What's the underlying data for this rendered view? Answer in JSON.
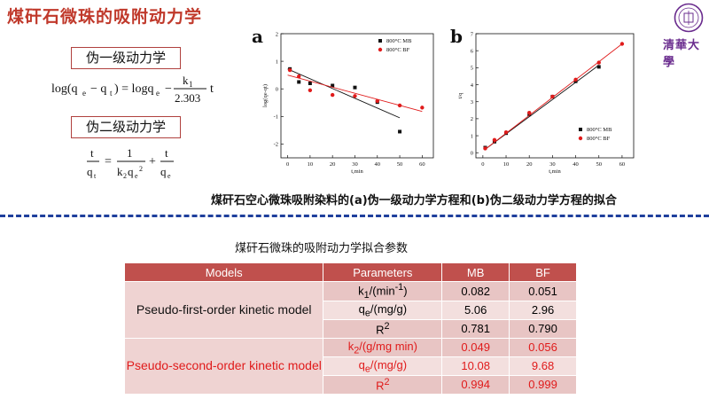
{
  "slide": {
    "title": "煤矸石微珠的吸附动力学",
    "university_mark": "清華大學"
  },
  "equations": {
    "pfo_label": "伪一级动力学",
    "pso_label": "伪二级动力学",
    "pfo_formula": "log(qe − qt) = logqe − (k1/2.303)t",
    "pso_formula": "t/qt = 1/(k2qe²) + t/qe"
  },
  "chart_data": [
    {
      "type": "scatter",
      "panel": "a",
      "xlabel": "t,min",
      "ylabel": "log(qe-qt)",
      "xlim": [
        -3,
        65
      ],
      "ylim": [
        -2.5,
        2
      ],
      "xticks": [
        0,
        10,
        20,
        30,
        40,
        50,
        60
      ],
      "yticks": [
        -2,
        -1,
        0,
        1,
        2
      ],
      "legend": "top-right",
      "series": [
        {
          "name": "800°C MB",
          "color": "#111111",
          "marker": "square",
          "x": [
            1,
            5,
            10,
            20,
            30,
            40,
            50
          ],
          "y": [
            0.72,
            0.25,
            0.2,
            0.12,
            0.05,
            -0.48,
            -1.55
          ],
          "fit": [
            [
              0,
              0.72
            ],
            [
              50,
              -1.05
            ]
          ]
        },
        {
          "name": "800°C BF",
          "color": "#e01b1b",
          "marker": "circle",
          "x": [
            1,
            5,
            10,
            20,
            30,
            40,
            50,
            60
          ],
          "y": [
            0.68,
            0.45,
            -0.05,
            -0.22,
            -0.26,
            -0.44,
            -0.6,
            -0.68
          ],
          "fit": [
            [
              0,
              0.5
            ],
            [
              60,
              -0.82
            ]
          ]
        }
      ]
    },
    {
      "type": "scatter",
      "panel": "b",
      "xlabel": "t,min",
      "ylabel": "t/q",
      "xlim": [
        -3,
        65
      ],
      "ylim": [
        -0.3,
        7
      ],
      "xticks": [
        0,
        10,
        20,
        30,
        40,
        50,
        60
      ],
      "yticks": [
        0,
        1,
        2,
        3,
        4,
        5,
        6,
        7
      ],
      "legend": "bottom-right",
      "series": [
        {
          "name": "800°C MB",
          "color": "#111111",
          "marker": "square",
          "x": [
            1,
            5,
            10,
            20,
            30,
            40,
            50
          ],
          "y": [
            0.3,
            0.65,
            1.15,
            2.25,
            3.3,
            4.2,
            5.05
          ],
          "fit": [
            [
              1,
              0.2
            ],
            [
              50,
              5.15
            ]
          ]
        },
        {
          "name": "800°C BF",
          "color": "#e01b1b",
          "marker": "circle",
          "x": [
            1,
            5,
            10,
            20,
            30,
            40,
            50,
            60
          ],
          "y": [
            0.25,
            0.75,
            1.2,
            2.35,
            3.3,
            4.3,
            5.3,
            6.4
          ],
          "fit": [
            [
              1,
              0.2
            ],
            [
              60,
              6.4
            ]
          ]
        }
      ]
    }
  ],
  "caption": {
    "p1": "煤矸石空心微珠吸附染料的",
    "a": "(a)",
    "p2": "伪一级动力学方程和",
    "b": "(b)",
    "p3": "伪二级动力学方程的拟合"
  },
  "table": {
    "title": "煤矸石微珠的吸附动力学拟合参数",
    "headers": [
      "Models",
      "Parameters",
      "MB",
      "BF"
    ],
    "pfo": {
      "model": "Pseudo-first-order kinetic model",
      "rows": [
        {
          "param": "k1/(min-1)",
          "mb": "0.082",
          "bf": "0.051"
        },
        {
          "param": "qe/(mg/g)",
          "mb": "5.06",
          "bf": "2.96"
        },
        {
          "param": "R2",
          "mb": "0.781",
          "bf": "0.790"
        }
      ]
    },
    "pso": {
      "model": "Pseudo-second-order kinetic model",
      "rows": [
        {
          "param": "k2/(g/mg min)",
          "mb": "0.049",
          "bf": "0.056"
        },
        {
          "param": "qe/(mg/g)",
          "mb": "10.08",
          "bf": "9.68"
        },
        {
          "param": "R2",
          "mb": "0.994",
          "bf": "0.999"
        }
      ]
    }
  }
}
